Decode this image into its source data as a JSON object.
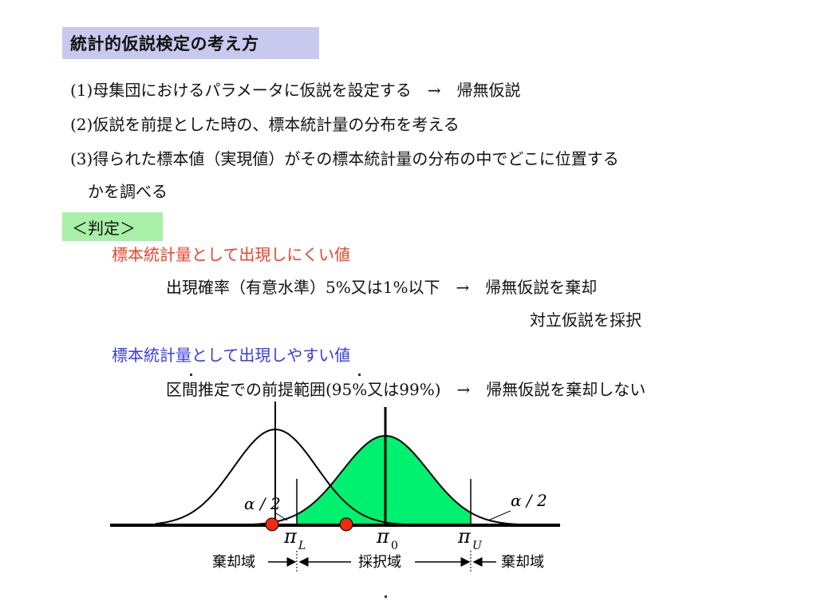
{
  "title": "統計的仮説検定の考え方",
  "steps": [
    "(1)母集団におけるパラメータに仮説を設定する　→　帰無仮説",
    "(2)仮説を前提とした時の、標本統計量の分布を考える",
    "(3)得られた標本値（実現値）がその標本統計量の分布の中でどこに位置する",
    "かを調べる"
  ],
  "judgment": {
    "heading": "＜判定＞",
    "unlikely": {
      "label": "標本統計量として出現しにくい値",
      "condition": "出現確率（有意水準）5%又は1%以下　→　帰無仮説を棄却",
      "result": "対立仮説を採択"
    },
    "likely": {
      "label": "標本統計量として出現しやすい値",
      "condition": "区間推定での前提範囲(95%又は99%)　→　帰無仮説を棄却しない"
    }
  },
  "diagram": {
    "alpha_left": "α / 2",
    "alpha_right": "α / 2",
    "pi_L": "π",
    "pi_L_sub": "L",
    "pi_0": "π",
    "pi_0_sub": "0",
    "pi_U": "π",
    "pi_U_sub": "U",
    "reject_left": "棄却域",
    "accept": "採択域",
    "reject_right": "棄却域",
    "colors": {
      "accept_fill": "#00f070",
      "marker": "#ee2a10",
      "curve": "#000000"
    }
  }
}
